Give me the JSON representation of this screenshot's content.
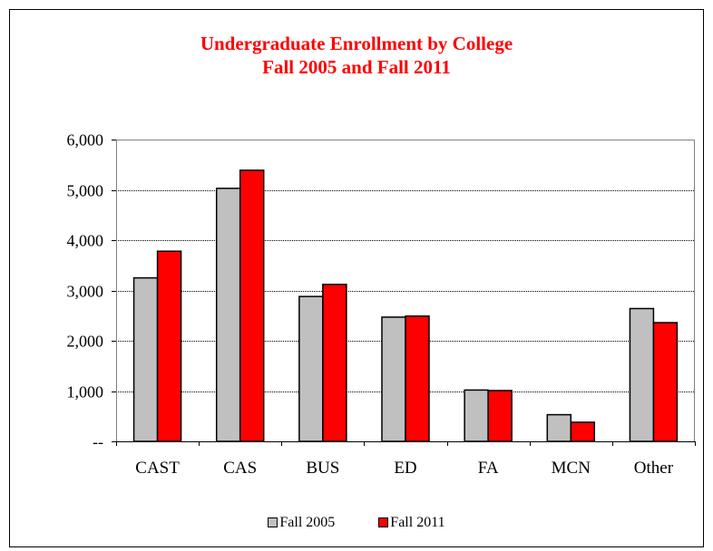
{
  "chart_data": {
    "type": "bar",
    "title_lines": [
      "Undergraduate Enrollment by College",
      "Fall 2005 and Fall 2011"
    ],
    "categories": [
      "CAST",
      "CAS",
      "BUS",
      "ED",
      "FA",
      "MCN",
      "Other"
    ],
    "series": [
      {
        "name": "Fall 2005",
        "color": "#c0c0c0",
        "values": [
          3250,
          5030,
          2880,
          2470,
          1020,
          530,
          2640
        ]
      },
      {
        "name": "Fall 2011",
        "color": "#ff0000",
        "values": [
          3780,
          5390,
          3120,
          2490,
          1010,
          380,
          2360
        ]
      }
    ],
    "yticks": [
      0,
      1000,
      2000,
      3000,
      4000,
      5000,
      6000
    ],
    "ytick_labels": [
      "--",
      "1,000",
      "2,000",
      "3,000",
      "4,000",
      "5,000",
      "6,000"
    ],
    "ylim": [
      0,
      6000
    ],
    "grid": true,
    "legend_position": "bottom"
  }
}
